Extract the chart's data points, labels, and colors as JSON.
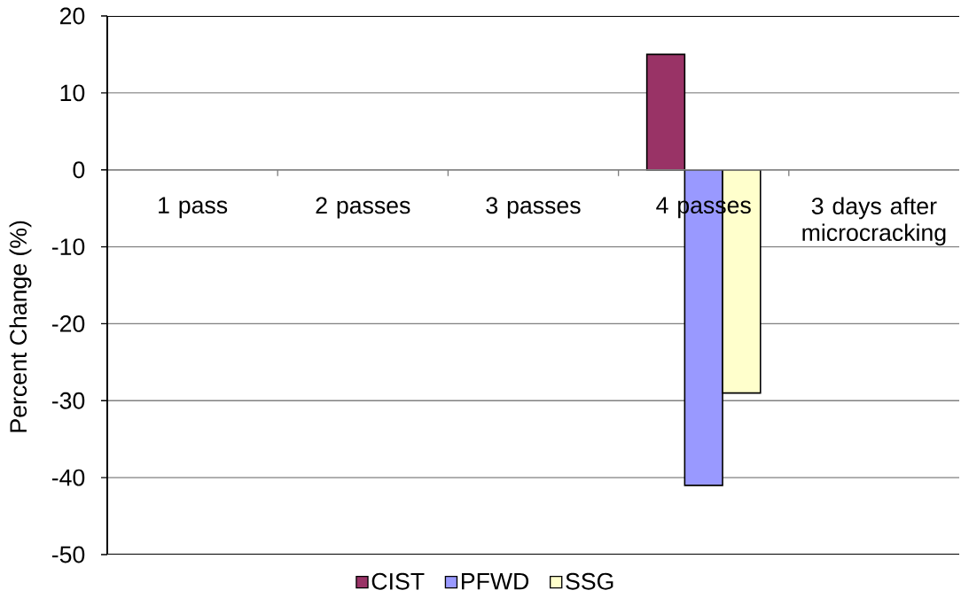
{
  "chart_data": {
    "type": "bar",
    "ylabel": "Percent Change (%)",
    "categories": [
      "1 pass",
      "2 passes",
      "3 passes",
      "4 passes",
      "3 days after microcracking"
    ],
    "series": [
      {
        "name": "CIST",
        "color": "#993366",
        "values": [
          null,
          null,
          null,
          15,
          null
        ]
      },
      {
        "name": "PFWD",
        "color": "#9999ff",
        "values": [
          null,
          null,
          null,
          -41,
          null
        ]
      },
      {
        "name": "SSG",
        "color": "#ffffcc",
        "values": [
          null,
          null,
          null,
          -29,
          null
        ]
      }
    ],
    "ylim": [
      -50,
      20
    ],
    "yticks": [
      -50,
      -40,
      -30,
      -20,
      -10,
      0,
      10,
      20
    ],
    "grid": "y",
    "legend": "bottom"
  }
}
